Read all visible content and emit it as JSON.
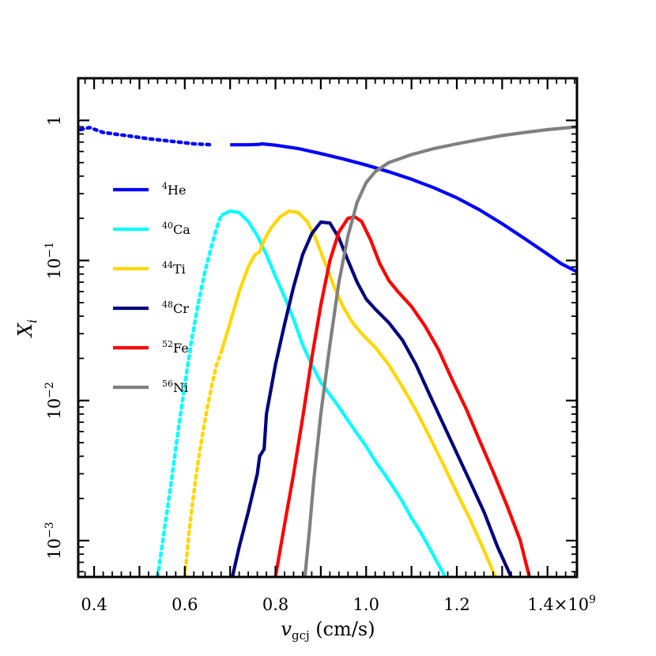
{
  "chart_data": {
    "type": "line",
    "xlabel": "v_gcj (cm/s)",
    "xlabel_main": "v",
    "xlabel_sub": "gcj",
    "xlabel_unit": " (cm/s)",
    "ylabel": "X_i",
    "ylabel_main": "X",
    "ylabel_sub": "i",
    "x_scale_label": "1.4×10^9",
    "x_scale_main": "1.4×10",
    "x_scale_exp": "9",
    "xlim": [
      0.365,
      1.465
    ],
    "ylim": [
      0.00055,
      2.0
    ],
    "y_scale": "log",
    "grid": false,
    "legend_position": "left",
    "x_ticks": [
      {
        "value": 0.4,
        "label": "0.4"
      },
      {
        "value": 0.6,
        "label": "0.6"
      },
      {
        "value": 0.8,
        "label": "0.8"
      },
      {
        "value": 1.0,
        "label": "1.0"
      },
      {
        "value": 1.2,
        "label": "1.2"
      }
    ],
    "y_ticks": [
      {
        "value": 1,
        "base": "1",
        "exp": ""
      },
      {
        "value": 0.1,
        "base": "10",
        "exp": "−1"
      },
      {
        "value": 0.01,
        "base": "10",
        "exp": "−2"
      },
      {
        "value": 0.001,
        "base": "10",
        "exp": "−3"
      }
    ],
    "series": [
      {
        "name": "4He",
        "iso": "4",
        "el": "He",
        "color": "#0000ff",
        "dotted_until": 0.68,
        "points": [
          [
            0.37,
            0.86
          ],
          [
            0.39,
            0.89
          ],
          [
            0.42,
            0.82
          ],
          [
            0.47,
            0.78
          ],
          [
            0.52,
            0.74
          ],
          [
            0.57,
            0.71
          ],
          [
            0.62,
            0.68
          ],
          [
            0.66,
            0.67
          ],
          [
            0.7,
            0.67
          ],
          [
            0.74,
            0.67
          ],
          [
            0.765,
            0.675
          ],
          [
            0.77,
            0.68
          ],
          [
            0.8,
            0.665
          ],
          [
            0.85,
            0.63
          ],
          [
            0.9,
            0.58
          ],
          [
            0.95,
            0.53
          ],
          [
            1.0,
            0.48
          ],
          [
            1.05,
            0.43
          ],
          [
            1.1,
            0.38
          ],
          [
            1.15,
            0.33
          ],
          [
            1.2,
            0.28
          ],
          [
            1.25,
            0.23
          ],
          [
            1.3,
            0.183
          ],
          [
            1.35,
            0.143
          ],
          [
            1.4,
            0.111
          ],
          [
            1.43,
            0.095
          ],
          [
            1.465,
            0.083
          ]
        ]
      },
      {
        "name": "40Ca",
        "iso": "40",
        "el": "Ca",
        "color": "#00ffff",
        "dotted_until": 0.68,
        "points": [
          [
            0.54,
            0.00055
          ],
          [
            0.555,
            0.0012
          ],
          [
            0.57,
            0.0026
          ],
          [
            0.585,
            0.006
          ],
          [
            0.6,
            0.013
          ],
          [
            0.615,
            0.027
          ],
          [
            0.63,
            0.05
          ],
          [
            0.645,
            0.085
          ],
          [
            0.66,
            0.13
          ],
          [
            0.67,
            0.17
          ],
          [
            0.68,
            0.21
          ],
          [
            0.7,
            0.225
          ],
          [
            0.72,
            0.22
          ],
          [
            0.74,
            0.19
          ],
          [
            0.76,
            0.15
          ],
          [
            0.78,
            0.11
          ],
          [
            0.8,
            0.077
          ],
          [
            0.82,
            0.055
          ],
          [
            0.84,
            0.038
          ],
          [
            0.86,
            0.025
          ],
          [
            0.88,
            0.018
          ],
          [
            0.9,
            0.0135
          ],
          [
            0.92,
            0.011
          ],
          [
            0.94,
            0.009
          ],
          [
            0.96,
            0.0072
          ],
          [
            0.98,
            0.0058
          ],
          [
            1.0,
            0.0047
          ],
          [
            1.02,
            0.0037
          ],
          [
            1.04,
            0.003
          ],
          [
            1.06,
            0.0024
          ],
          [
            1.08,
            0.0019
          ],
          [
            1.1,
            0.00145
          ],
          [
            1.12,
            0.00115
          ],
          [
            1.14,
            0.00088
          ],
          [
            1.16,
            0.00067
          ],
          [
            1.175,
            0.00055
          ]
        ]
      },
      {
        "name": "44Ti",
        "iso": "44",
        "el": "Ti",
        "color": "#ffd700",
        "dotted_until": 0.68,
        "points": [
          [
            0.6,
            0.00055
          ],
          [
            0.61,
            0.0012
          ],
          [
            0.62,
            0.0022
          ],
          [
            0.63,
            0.0038
          ],
          [
            0.64,
            0.006
          ],
          [
            0.65,
            0.009
          ],
          [
            0.66,
            0.013
          ],
          [
            0.67,
            0.018
          ],
          [
            0.68,
            0.022
          ],
          [
            0.7,
            0.036
          ],
          [
            0.72,
            0.06
          ],
          [
            0.74,
            0.09
          ],
          [
            0.755,
            0.11
          ],
          [
            0.765,
            0.115
          ],
          [
            0.775,
            0.14
          ],
          [
            0.79,
            0.17
          ],
          [
            0.81,
            0.205
          ],
          [
            0.83,
            0.225
          ],
          [
            0.85,
            0.22
          ],
          [
            0.87,
            0.19
          ],
          [
            0.89,
            0.14
          ],
          [
            0.91,
            0.095
          ],
          [
            0.93,
            0.064
          ],
          [
            0.95,
            0.046
          ],
          [
            0.97,
            0.036
          ],
          [
            0.99,
            0.03
          ],
          [
            1.02,
            0.024
          ],
          [
            1.05,
            0.018
          ],
          [
            1.08,
            0.0125
          ],
          [
            1.11,
            0.0085
          ],
          [
            1.14,
            0.0055
          ],
          [
            1.17,
            0.0035
          ],
          [
            1.2,
            0.0022
          ],
          [
            1.23,
            0.0014
          ],
          [
            1.26,
            0.00085
          ],
          [
            1.285,
            0.00055
          ]
        ]
      },
      {
        "name": "48Cr",
        "iso": "48",
        "el": "Cr",
        "color": "#00007f",
        "dotted_until": null,
        "points": [
          [
            0.705,
            0.00055
          ],
          [
            0.72,
            0.0009
          ],
          [
            0.74,
            0.0016
          ],
          [
            0.76,
            0.003
          ],
          [
            0.765,
            0.004
          ],
          [
            0.775,
            0.0045
          ],
          [
            0.78,
            0.008
          ],
          [
            0.79,
            0.012
          ],
          [
            0.8,
            0.018
          ],
          [
            0.82,
            0.035
          ],
          [
            0.84,
            0.065
          ],
          [
            0.86,
            0.11
          ],
          [
            0.88,
            0.155
          ],
          [
            0.9,
            0.188
          ],
          [
            0.92,
            0.185
          ],
          [
            0.94,
            0.145
          ],
          [
            0.96,
            0.1
          ],
          [
            0.98,
            0.07
          ],
          [
            1.0,
            0.053
          ],
          [
            1.02,
            0.045
          ],
          [
            1.05,
            0.036
          ],
          [
            1.08,
            0.027
          ],
          [
            1.11,
            0.018
          ],
          [
            1.14,
            0.011
          ],
          [
            1.17,
            0.0068
          ],
          [
            1.2,
            0.0042
          ],
          [
            1.23,
            0.0026
          ],
          [
            1.26,
            0.0016
          ],
          [
            1.29,
            0.0009
          ],
          [
            1.32,
            0.00055
          ]
        ]
      },
      {
        "name": "52Fe",
        "iso": "52",
        "el": "Fe",
        "color": "#ff0000",
        "dotted_until": null,
        "points": [
          [
            0.8,
            0.00055
          ],
          [
            0.82,
            0.0013
          ],
          [
            0.84,
            0.003
          ],
          [
            0.86,
            0.0075
          ],
          [
            0.88,
            0.02
          ],
          [
            0.9,
            0.048
          ],
          [
            0.92,
            0.1
          ],
          [
            0.94,
            0.16
          ],
          [
            0.96,
            0.2
          ],
          [
            0.975,
            0.205
          ],
          [
            0.99,
            0.19
          ],
          [
            1.01,
            0.14
          ],
          [
            1.03,
            0.095
          ],
          [
            1.05,
            0.072
          ],
          [
            1.07,
            0.06
          ],
          [
            1.1,
            0.047
          ],
          [
            1.13,
            0.034
          ],
          [
            1.16,
            0.023
          ],
          [
            1.19,
            0.014
          ],
          [
            1.22,
            0.0088
          ],
          [
            1.25,
            0.0052
          ],
          [
            1.28,
            0.0031
          ],
          [
            1.31,
            0.0018
          ],
          [
            1.34,
            0.001
          ],
          [
            1.36,
            0.00055
          ]
        ]
      },
      {
        "name": "56Ni",
        "iso": "56",
        "el": "Ni",
        "color": "#808080",
        "dotted_until": null,
        "points": [
          [
            0.865,
            0.00055
          ],
          [
            0.875,
            0.0012
          ],
          [
            0.885,
            0.0028
          ],
          [
            0.9,
            0.008
          ],
          [
            0.92,
            0.025
          ],
          [
            0.94,
            0.07
          ],
          [
            0.96,
            0.15
          ],
          [
            0.98,
            0.26
          ],
          [
            1.0,
            0.36
          ],
          [
            1.02,
            0.43
          ],
          [
            1.05,
            0.5
          ],
          [
            1.1,
            0.57
          ],
          [
            1.15,
            0.63
          ],
          [
            1.2,
            0.68
          ],
          [
            1.25,
            0.73
          ],
          [
            1.3,
            0.78
          ],
          [
            1.35,
            0.82
          ],
          [
            1.4,
            0.86
          ],
          [
            1.465,
            0.9
          ]
        ]
      }
    ]
  }
}
